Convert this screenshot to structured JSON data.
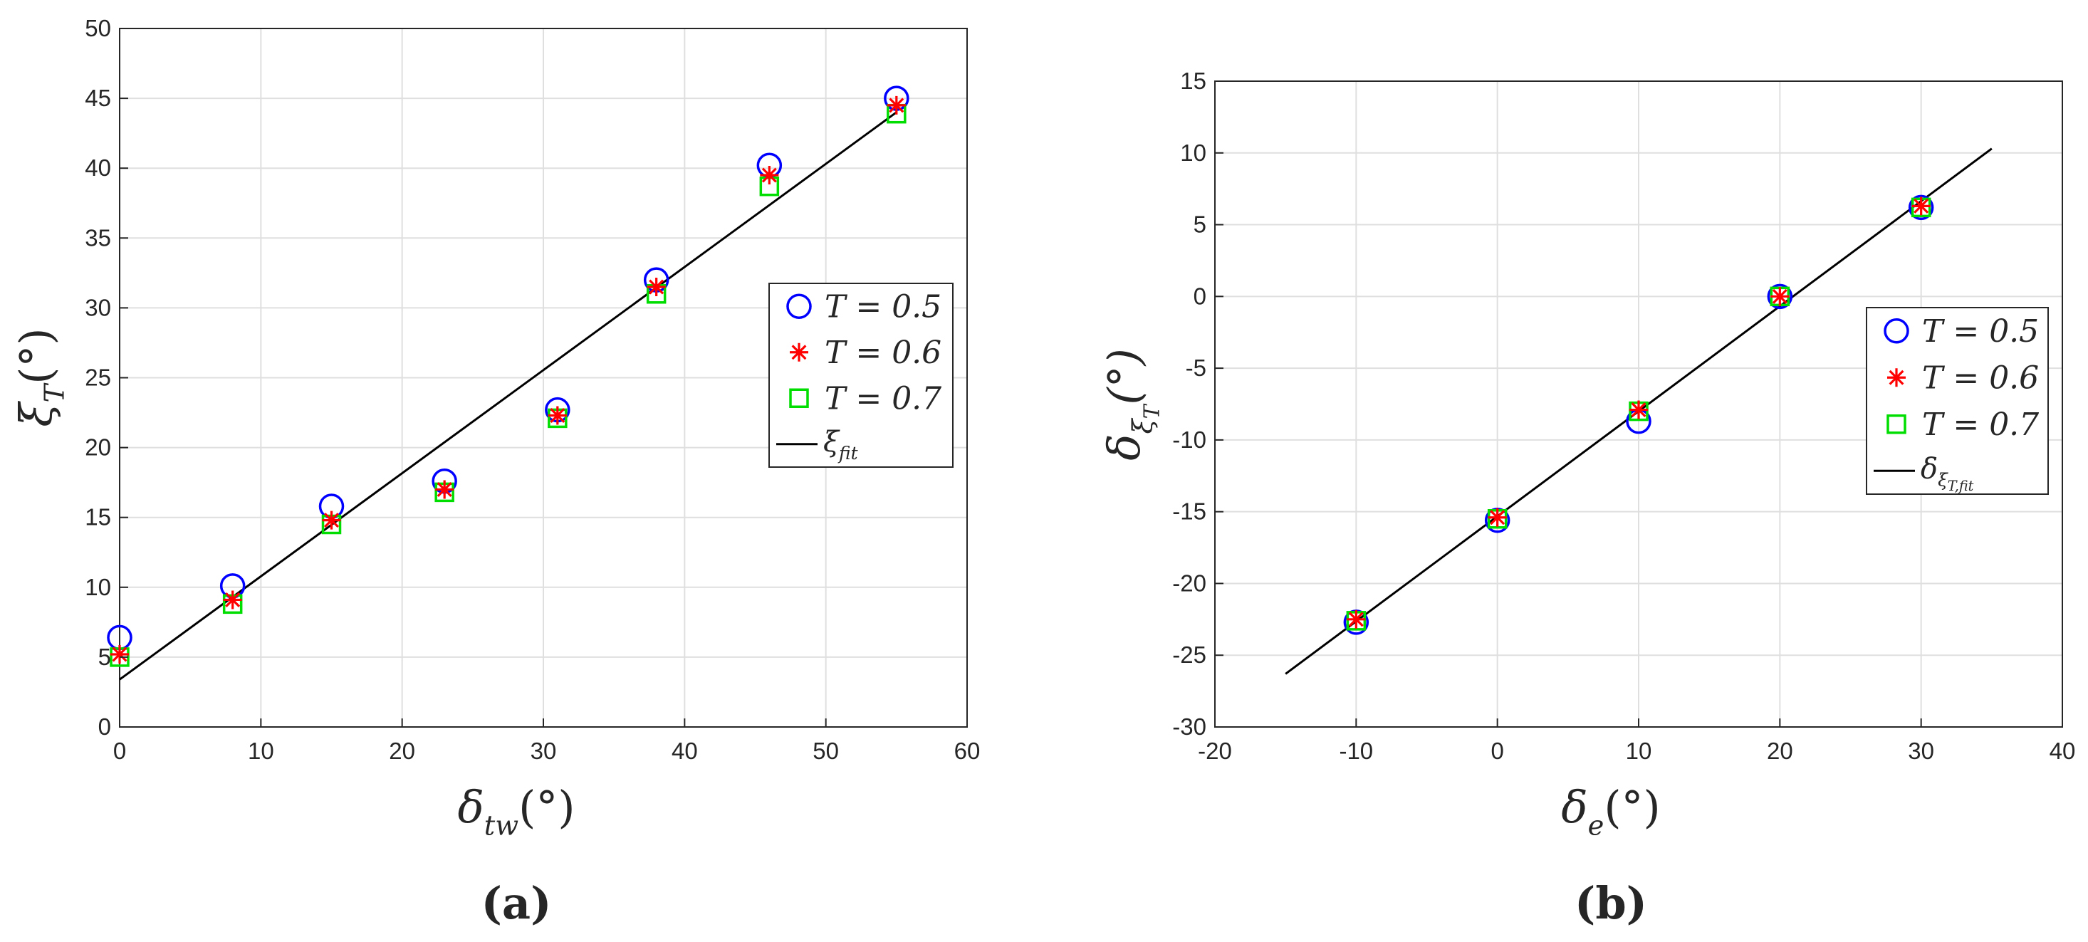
{
  "colors": {
    "t05": "#0000ff",
    "t06": "#ff0000",
    "t07": "#00dd00",
    "fit": "#000000"
  },
  "chart_data": [
    {
      "type": "scatter",
      "caption": "(a)",
      "xlabel": "δ_{tw}(°)",
      "ylabel": "ξ_T(°)",
      "xlim": [
        0,
        60
      ],
      "ylim": [
        0,
        50
      ],
      "xticks": [
        0,
        10,
        20,
        30,
        40,
        50,
        60
      ],
      "yticks": [
        0,
        5,
        10,
        15,
        20,
        25,
        30,
        35,
        40,
        45,
        50
      ],
      "grid": true,
      "legend_position": "right",
      "x": [
        0,
        8,
        15,
        23,
        31,
        38,
        46,
        55
      ],
      "series": [
        {
          "name": "T = 0.5",
          "marker": "circle",
          "color": "#0000ff",
          "values": [
            6.4,
            10.1,
            15.8,
            17.6,
            22.7,
            32.0,
            40.2,
            45.0
          ]
        },
        {
          "name": "T = 0.6",
          "marker": "asterisk",
          "color": "#ff0000",
          "values": [
            5.2,
            9.1,
            14.8,
            17.0,
            22.3,
            31.5,
            39.5,
            44.5
          ]
        },
        {
          "name": "T = 0.7",
          "marker": "square",
          "color": "#00dd00",
          "values": [
            5.0,
            8.8,
            14.5,
            16.8,
            22.1,
            31.0,
            38.7,
            43.9
          ]
        }
      ],
      "fit": {
        "name": "ξ_{fit}",
        "x": [
          0,
          55
        ],
        "y": [
          3.4,
          44.0
        ]
      }
    },
    {
      "type": "scatter",
      "caption": "(b)",
      "xlabel": "δ_e(°)",
      "ylabel": "δ_{ξ_T}(°)",
      "xlim": [
        -20,
        40
      ],
      "ylim": [
        -30,
        15
      ],
      "xticks": [
        -20,
        -10,
        0,
        10,
        20,
        30,
        40
      ],
      "yticks": [
        -30,
        -25,
        -20,
        -15,
        -10,
        -5,
        0,
        5,
        10,
        15
      ],
      "grid": true,
      "legend_position": "right",
      "x": [
        -10,
        0,
        10,
        20,
        30
      ],
      "series": [
        {
          "name": "T = 0.5",
          "marker": "circle",
          "color": "#0000ff",
          "values": [
            -22.7,
            -15.6,
            -8.7,
            0.0,
            6.2
          ]
        },
        {
          "name": "T = 0.6",
          "marker": "asterisk",
          "color": "#ff0000",
          "values": [
            -22.5,
            -15.4,
            -7.9,
            0.0,
            6.3
          ]
        },
        {
          "name": "T = 0.7",
          "marker": "square",
          "color": "#00dd00",
          "values": [
            -22.6,
            -15.5,
            -8.0,
            0.0,
            6.2
          ]
        }
      ],
      "fit": {
        "name": "δ_{ξ_T,fit}",
        "x": [
          -15,
          35
        ],
        "y": [
          -26.3,
          10.3
        ]
      }
    }
  ]
}
